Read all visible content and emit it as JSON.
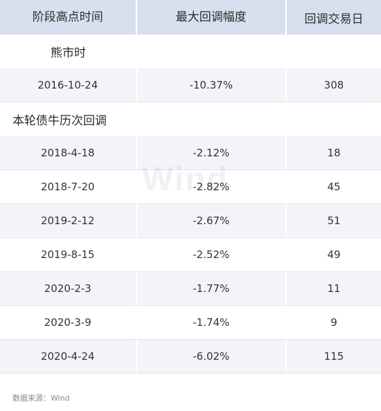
{
  "header": {
    "col1": "阶段高点时间",
    "col2": "最大回调幅度",
    "col3": "回调交易日"
  },
  "sections": [
    {
      "title": "熊市时",
      "rows": [
        {
          "date": "2016-10-24",
          "drawdown": "-10.37%",
          "days": "308"
        }
      ]
    },
    {
      "title": "本轮债牛历次回调",
      "rows": [
        {
          "date": "2018-4-18",
          "drawdown": "-2.12%",
          "days": "18"
        },
        {
          "date": "2018-7-20",
          "drawdown": "-2.82%",
          "days": "45"
        },
        {
          "date": "2019-2-12",
          "drawdown": "-2.67%",
          "days": "51"
        },
        {
          "date": "2019-8-15",
          "drawdown": "-2.52%",
          "days": "49"
        },
        {
          "date": "2020-2-3",
          "drawdown": "-1.77%",
          "days": "11"
        },
        {
          "date": "2020-3-9",
          "drawdown": "-1.74%",
          "days": "9"
        },
        {
          "date": "2020-4-24",
          "drawdown": "-6.02%",
          "days": "115"
        }
      ]
    }
  ],
  "footer": {
    "source": "数据来源：Wind"
  },
  "watermark": "Wind"
}
